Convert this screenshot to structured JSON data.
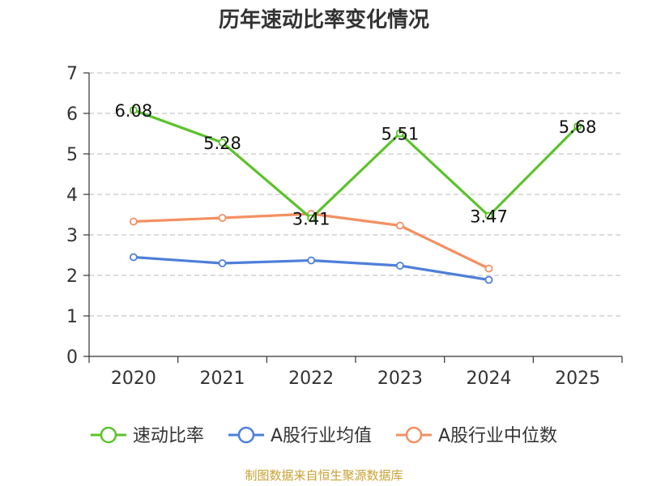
{
  "chart_data": {
    "type": "line",
    "title": "历年速动比率变化情况",
    "categories": [
      "2020",
      "2021",
      "2022",
      "2023",
      "2024",
      "2025"
    ],
    "ylim": [
      0,
      7
    ],
    "yticks": [
      0,
      1,
      2,
      3,
      4,
      5,
      6,
      7
    ],
    "grid": true,
    "legend_position": "bottom",
    "series": [
      {
        "name": "速动比率",
        "color": "#5cc22c",
        "values": [
          6.08,
          5.28,
          3.41,
          5.51,
          3.47,
          5.68
        ],
        "labels": [
          "6.08",
          "5.28",
          "3.41",
          "5.51",
          "3.47",
          "5.68"
        ]
      },
      {
        "name": "A股行业均值",
        "color": "#4e7fd9",
        "values": [
          2.45,
          2.3,
          2.37,
          2.24,
          1.89,
          null
        ]
      },
      {
        "name": "A股行业中位数",
        "color": "#f39062",
        "values": [
          3.33,
          3.42,
          3.52,
          3.23,
          2.17,
          null
        ]
      }
    ],
    "source": "制图数据来自恒生聚源数据库"
  }
}
